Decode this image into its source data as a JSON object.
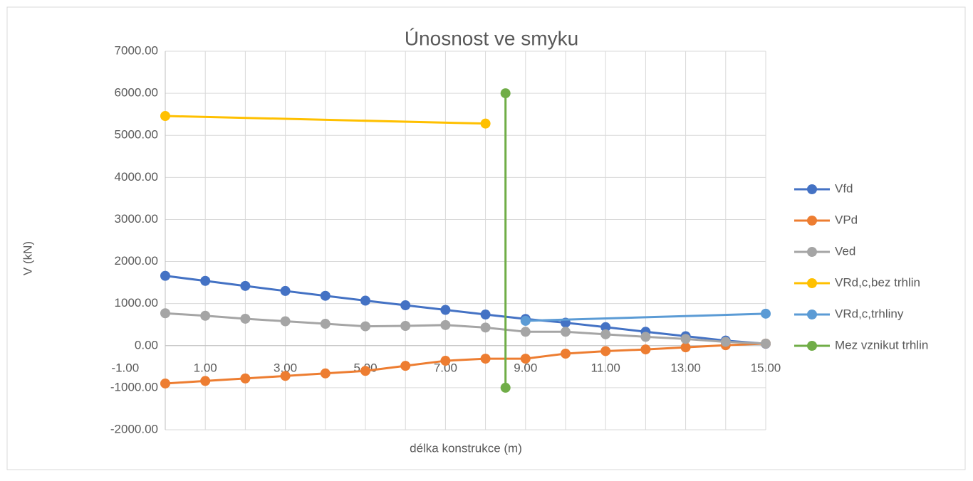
{
  "chart_data": {
    "type": "scatter",
    "title": "Únosnost ve smyku",
    "xlabel": "délka konstrukce (m)",
    "ylabel": "V (kN)",
    "xlim": [
      0,
      15
    ],
    "ylim": [
      -2000,
      7000
    ],
    "xticks": [
      {
        "value": -1,
        "label": "-1.00"
      },
      {
        "value": 1,
        "label": "1.00"
      },
      {
        "value": 3,
        "label": "3.00"
      },
      {
        "value": 5,
        "label": "5.00"
      },
      {
        "value": 7,
        "label": "7.00"
      },
      {
        "value": 9,
        "label": "9.00"
      },
      {
        "value": 11,
        "label": "11.00"
      },
      {
        "value": 13,
        "label": "13.00"
      },
      {
        "value": 15,
        "label": "15.00"
      }
    ],
    "yticks": [
      {
        "value": -2000,
        "label": "-2000.00"
      },
      {
        "value": -1000,
        "label": "-1000.00"
      },
      {
        "value": 0,
        "label": "0.00"
      },
      {
        "value": 1000,
        "label": "1000.00"
      },
      {
        "value": 2000,
        "label": "2000.00"
      },
      {
        "value": 3000,
        "label": "3000.00"
      },
      {
        "value": 4000,
        "label": "4000.00"
      },
      {
        "value": 5000,
        "label": "5000.00"
      },
      {
        "value": 6000,
        "label": "6000.00"
      },
      {
        "value": 7000,
        "label": "7000.00"
      }
    ],
    "grid": true,
    "legend": "right",
    "series": [
      {
        "name": "Vfd",
        "color": "#4472c4",
        "x": [
          0,
          1,
          2,
          3,
          4,
          5,
          6,
          7,
          8,
          9,
          10,
          11,
          12,
          13,
          14,
          15
        ],
        "values": [
          1660,
          1540,
          1420,
          1300,
          1185,
          1070,
          960,
          850,
          740,
          635,
          545,
          440,
          330,
          225,
          120,
          45
        ]
      },
      {
        "name": "VPd",
        "color": "#ed7d31",
        "x": [
          0,
          1,
          2,
          3,
          4,
          5,
          6,
          7,
          8,
          9,
          10,
          11,
          12,
          13,
          14,
          15
        ],
        "values": [
          -900,
          -840,
          -780,
          -720,
          -660,
          -600,
          -480,
          -360,
          -310,
          -310,
          -190,
          -130,
          -90,
          -40,
          10,
          50
        ]
      },
      {
        "name": "Ved",
        "color": "#a5a5a5",
        "x": [
          0,
          1,
          2,
          3,
          4,
          5,
          6,
          7,
          8,
          9,
          10,
          11,
          12,
          13,
          14,
          15
        ],
        "values": [
          770,
          710,
          640,
          580,
          520,
          460,
          470,
          490,
          430,
          330,
          330,
          270,
          210,
          160,
          90,
          50
        ]
      },
      {
        "name": "VRd,c,bez trhlin",
        "color": "#ffc000",
        "x": [
          0,
          8
        ],
        "values": [
          5460,
          5280
        ]
      },
      {
        "name": "VRd,c,trhliny",
        "color": "#5b9bd5",
        "x": [
          9,
          15
        ],
        "values": [
          590,
          760
        ]
      },
      {
        "name": "Mez vznikut trhlin",
        "color": "#70ad47",
        "x": [
          8.5,
          8.5
        ],
        "values": [
          6000,
          -1000
        ]
      }
    ]
  }
}
